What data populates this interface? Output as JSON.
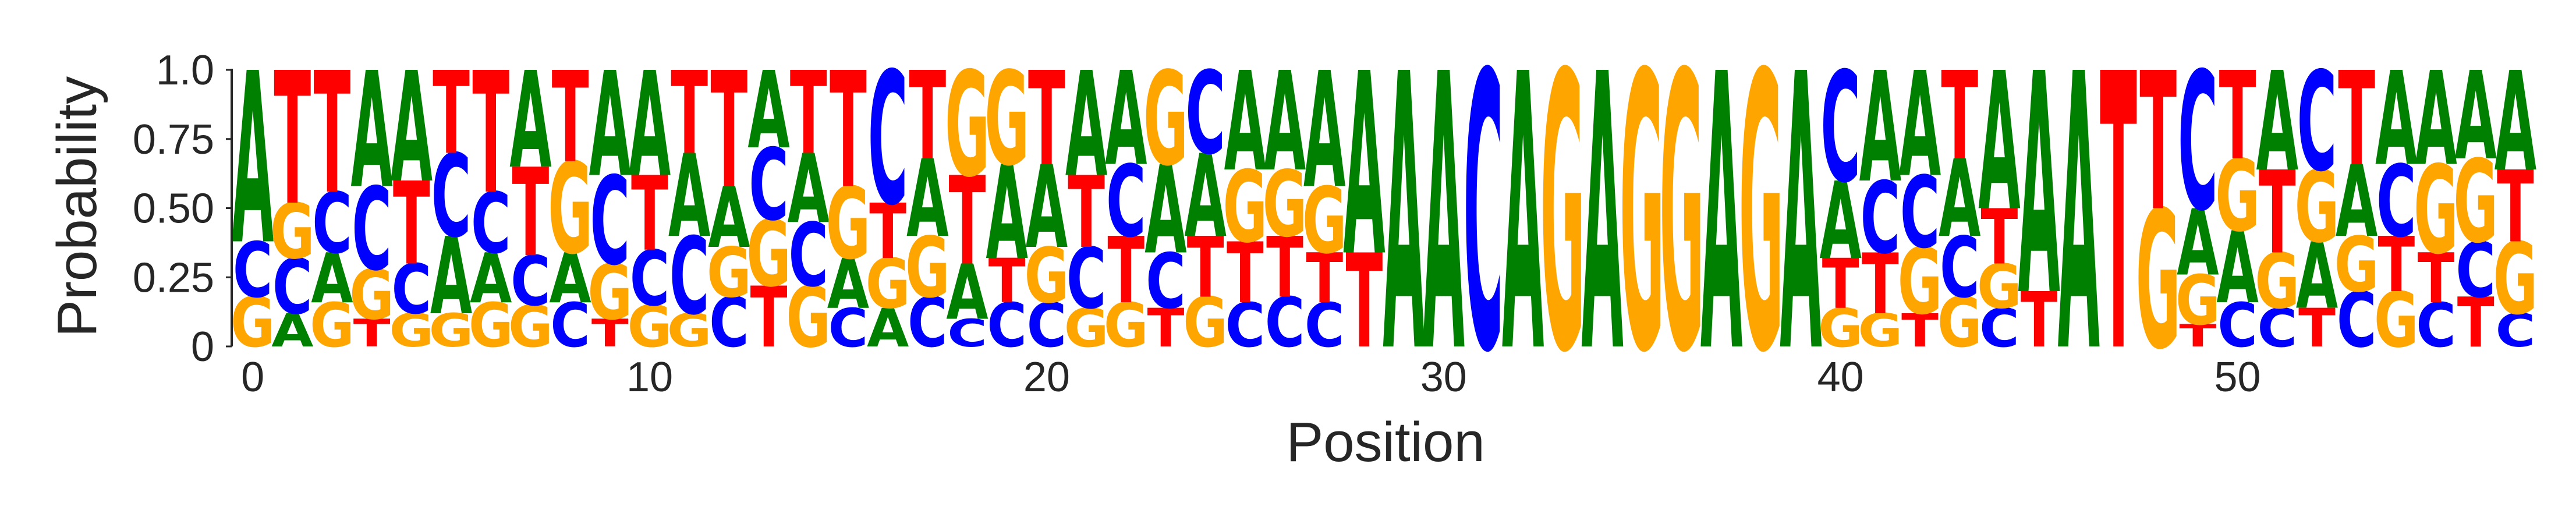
{
  "chart_data": {
    "type": "sequence-logo",
    "xlabel": "Position",
    "ylabel": "Probability",
    "ylim": [
      0,
      1
    ],
    "yticks": [
      "0",
      "0.25",
      "0.50",
      "0.75",
      "1.0"
    ],
    "xticks": [
      "0",
      "10",
      "20",
      "30",
      "40",
      "50"
    ],
    "xtick_values": [
      0,
      10,
      20,
      30,
      40,
      50
    ],
    "alphabet": [
      "A",
      "C",
      "G",
      "T"
    ],
    "colors": {
      "A": "#008000",
      "C": "#0000ff",
      "G": "#ffa500",
      "T": "#ff0000"
    },
    "grid": false,
    "positions": [
      {
        "A": 0.62,
        "C": 0.2,
        "G": 0.18,
        "T": 0.0
      },
      {
        "A": 0.12,
        "C": 0.2,
        "G": 0.2,
        "T": 0.48
      },
      {
        "A": 0.18,
        "C": 0.22,
        "G": 0.16,
        "T": 0.44
      },
      {
        "A": 0.42,
        "C": 0.3,
        "G": 0.18,
        "T": 0.1
      },
      {
        "A": 0.4,
        "C": 0.18,
        "G": 0.12,
        "T": 0.3
      },
      {
        "A": 0.28,
        "C": 0.3,
        "G": 0.12,
        "T": 0.3
      },
      {
        "A": 0.18,
        "C": 0.22,
        "G": 0.16,
        "T": 0.44
      },
      {
        "A": 0.35,
        "C": 0.18,
        "G": 0.15,
        "T": 0.32
      },
      {
        "A": 0.18,
        "C": 0.16,
        "G": 0.33,
        "T": 0.33
      },
      {
        "A": 0.38,
        "C": 0.32,
        "G": 0.2,
        "T": 0.1
      },
      {
        "A": 0.38,
        "C": 0.2,
        "G": 0.15,
        "T": 0.27
      },
      {
        "A": 0.3,
        "C": 0.28,
        "G": 0.12,
        "T": 0.3
      },
      {
        "A": 0.22,
        "C": 0.18,
        "G": 0.18,
        "T": 0.42
      },
      {
        "A": 0.28,
        "C": 0.26,
        "G": 0.24,
        "T": 0.22
      },
      {
        "A": 0.25,
        "C": 0.23,
        "G": 0.22,
        "T": 0.3
      },
      {
        "A": 0.18,
        "C": 0.14,
        "G": 0.26,
        "T": 0.42
      },
      {
        "A": 0.14,
        "C": 0.48,
        "G": 0.18,
        "T": 0.2
      },
      {
        "A": 0.28,
        "C": 0.18,
        "G": 0.22,
        "T": 0.32
      },
      {
        "A": 0.2,
        "C": 0.1,
        "G": 0.38,
        "T": 0.32
      },
      {
        "A": 0.34,
        "C": 0.16,
        "G": 0.34,
        "T": 0.16
      },
      {
        "A": 0.3,
        "C": 0.16,
        "G": 0.2,
        "T": 0.34
      },
      {
        "A": 0.38,
        "C": 0.22,
        "G": 0.14,
        "T": 0.26
      },
      {
        "A": 0.34,
        "C": 0.26,
        "G": 0.16,
        "T": 0.24
      },
      {
        "A": 0.32,
        "C": 0.2,
        "G": 0.34,
        "T": 0.14
      },
      {
        "A": 0.3,
        "C": 0.3,
        "G": 0.18,
        "T": 0.22
      },
      {
        "A": 0.36,
        "C": 0.16,
        "G": 0.26,
        "T": 0.22
      },
      {
        "A": 0.36,
        "C": 0.18,
        "G": 0.24,
        "T": 0.22
      },
      {
        "A": 0.42,
        "C": 0.16,
        "G": 0.24,
        "T": 0.18
      },
      {
        "A": 0.66,
        "C": 0.0,
        "G": 0.0,
        "T": 0.34
      },
      {
        "A": 1.0,
        "C": 0.0,
        "G": 0.0,
        "T": 0.0
      },
      {
        "A": 1.0,
        "C": 0.0,
        "G": 0.0,
        "T": 0.0
      },
      {
        "A": 0.0,
        "C": 1.0,
        "G": 0.0,
        "T": 0.0
      },
      {
        "A": 1.0,
        "C": 0.0,
        "G": 0.0,
        "T": 0.0
      },
      {
        "A": 0.0,
        "C": 0.0,
        "G": 1.0,
        "T": 0.0
      },
      {
        "A": 1.0,
        "C": 0.0,
        "G": 0.0,
        "T": 0.0
      },
      {
        "A": 0.0,
        "C": 0.0,
        "G": 1.0,
        "T": 0.0
      },
      {
        "A": 0.0,
        "C": 0.0,
        "G": 1.0,
        "T": 0.0
      },
      {
        "A": 1.0,
        "C": 0.0,
        "G": 0.0,
        "T": 0.0
      },
      {
        "A": 0.0,
        "C": 0.0,
        "G": 1.0,
        "T": 0.0
      },
      {
        "A": 1.0,
        "C": 0.0,
        "G": 0.0,
        "T": 0.0
      },
      {
        "A": 0.28,
        "C": 0.4,
        "G": 0.14,
        "T": 0.18
      },
      {
        "A": 0.4,
        "C": 0.26,
        "G": 0.12,
        "T": 0.22
      },
      {
        "A": 0.38,
        "C": 0.26,
        "G": 0.24,
        "T": 0.12
      },
      {
        "A": 0.28,
        "C": 0.22,
        "G": 0.18,
        "T": 0.32
      },
      {
        "A": 0.5,
        "C": 0.14,
        "G": 0.16,
        "T": 0.2
      },
      {
        "A": 0.8,
        "C": 0.0,
        "G": 0.0,
        "T": 0.2
      },
      {
        "A": 1.0,
        "C": 0.0,
        "G": 0.0,
        "T": 0.0
      },
      {
        "A": 0.0,
        "C": 0.0,
        "G": 0.0,
        "T": 1.0
      },
      {
        "A": 0.0,
        "C": 0.0,
        "G": 0.5,
        "T": 0.5
      },
      {
        "A": 0.24,
        "C": 0.5,
        "G": 0.18,
        "T": 0.08
      },
      {
        "A": 0.26,
        "C": 0.16,
        "G": 0.26,
        "T": 0.32
      },
      {
        "A": 0.36,
        "C": 0.14,
        "G": 0.2,
        "T": 0.3
      },
      {
        "A": 0.24,
        "C": 0.36,
        "G": 0.26,
        "T": 0.14
      },
      {
        "A": 0.26,
        "C": 0.2,
        "G": 0.2,
        "T": 0.34
      },
      {
        "A": 0.34,
        "C": 0.26,
        "G": 0.2,
        "T": 0.2
      },
      {
        "A": 0.34,
        "C": 0.16,
        "G": 0.32,
        "T": 0.18
      },
      {
        "A": 0.32,
        "C": 0.2,
        "G": 0.3,
        "T": 0.18
      },
      {
        "A": 0.36,
        "C": 0.12,
        "G": 0.26,
        "T": 0.26
      }
    ]
  }
}
